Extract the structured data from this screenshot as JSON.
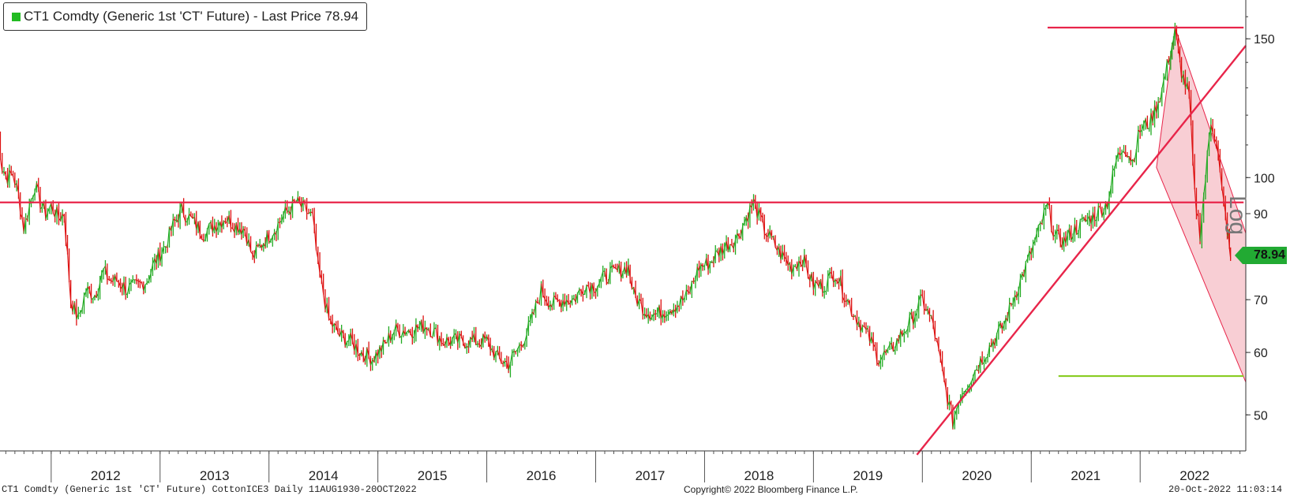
{
  "legend": {
    "label": "CT1 Comdty (Generic 1st 'CT' Future) - Last Price 78.94",
    "color": "#22bb22"
  },
  "axis": {
    "log_label": "Log",
    "last_price_tag": "78.94"
  },
  "footer": {
    "left": "CT1 Comdty (Generic 1st 'CT' Future) CottonICE3  Daily 11AUG1930-20OCT2022",
    "center": "Copyright© 2022 Bloomberg Finance L.P.",
    "right": "20-Oct-2022 11:03:14"
  },
  "colors": {
    "up": "#22aa22",
    "down": "#dd1111",
    "line_red": "#e8254a",
    "line_green": "#88cc22",
    "channel_fill": "#f7c6cc"
  },
  "chart_data": {
    "type": "line",
    "title": "CT1 Comdty (Generic 1st 'CT' Future) - Last Price 78.94",
    "scale": "log",
    "ylim": [
      45,
      168
    ],
    "y_ticks": [
      50,
      60,
      70,
      90,
      100,
      150
    ],
    "x_ticks": [
      "2012",
      "2013",
      "2014",
      "2015",
      "2016",
      "2017",
      "2018",
      "2019",
      "2020",
      "2021",
      "2022"
    ],
    "last_price": 78.94,
    "series": [
      {
        "values": [
          [
            2011.5,
            118
          ],
          [
            2011.55,
            103
          ],
          [
            2011.6,
            100
          ],
          [
            2011.65,
            101
          ],
          [
            2011.7,
            95
          ],
          [
            2011.75,
            86
          ],
          [
            2011.8,
            92
          ],
          [
            2011.85,
            98
          ],
          [
            2011.9,
            93
          ],
          [
            2011.95,
            90
          ],
          [
            2012.0,
            92
          ],
          [
            2012.07,
            89
          ],
          [
            2012.12,
            90
          ],
          [
            2012.18,
            70
          ],
          [
            2012.25,
            66
          ],
          [
            2012.32,
            72
          ],
          [
            2012.4,
            71
          ],
          [
            2012.48,
            76
          ],
          [
            2012.55,
            74
          ],
          [
            2012.62,
            74
          ],
          [
            2012.7,
            72
          ],
          [
            2012.8,
            73
          ],
          [
            2012.88,
            74
          ],
          [
            2012.95,
            78
          ],
          [
            2013.05,
            82
          ],
          [
            2013.12,
            87
          ],
          [
            2013.2,
            91
          ],
          [
            2013.3,
            88
          ],
          [
            2013.4,
            85
          ],
          [
            2013.5,
            87
          ],
          [
            2013.6,
            89
          ],
          [
            2013.7,
            87
          ],
          [
            2013.78,
            86
          ],
          [
            2013.85,
            79
          ],
          [
            2013.95,
            83
          ],
          [
            2014.05,
            86
          ],
          [
            2014.15,
            90
          ],
          [
            2014.25,
            93
          ],
          [
            2014.33,
            91
          ],
          [
            2014.4,
            89
          ],
          [
            2014.45,
            77
          ],
          [
            2014.55,
            66
          ],
          [
            2014.65,
            63
          ],
          [
            2014.75,
            62
          ],
          [
            2014.85,
            60
          ],
          [
            2014.95,
            59
          ],
          [
            2015.05,
            61
          ],
          [
            2015.15,
            64
          ],
          [
            2015.3,
            64
          ],
          [
            2015.45,
            65
          ],
          [
            2015.6,
            62
          ],
          [
            2015.75,
            62
          ],
          [
            2015.9,
            62
          ],
          [
            2016.0,
            62
          ],
          [
            2016.1,
            59
          ],
          [
            2016.2,
            58
          ],
          [
            2016.3,
            61
          ],
          [
            2016.4,
            65
          ],
          [
            2016.5,
            72
          ],
          [
            2016.6,
            69
          ],
          [
            2016.7,
            70
          ],
          [
            2016.8,
            70
          ],
          [
            2016.9,
            73
          ],
          [
            2017.0,
            73
          ],
          [
            2017.1,
            75
          ],
          [
            2017.2,
            76
          ],
          [
            2017.3,
            77
          ],
          [
            2017.35,
            71
          ],
          [
            2017.45,
            68
          ],
          [
            2017.55,
            67
          ],
          [
            2017.65,
            68
          ],
          [
            2017.75,
            69
          ],
          [
            2017.85,
            71
          ],
          [
            2017.95,
            77
          ],
          [
            2018.05,
            78
          ],
          [
            2018.15,
            81
          ],
          [
            2018.3,
            84
          ],
          [
            2018.45,
            93
          ],
          [
            2018.55,
            86
          ],
          [
            2018.7,
            80
          ],
          [
            2018.8,
            77
          ],
          [
            2018.9,
            79
          ],
          [
            2019.0,
            73
          ],
          [
            2019.1,
            73
          ],
          [
            2019.2,
            76
          ],
          [
            2019.35,
            68
          ],
          [
            2019.5,
            63
          ],
          [
            2019.6,
            59
          ],
          [
            2019.7,
            60
          ],
          [
            2019.8,
            63
          ],
          [
            2019.9,
            66
          ],
          [
            2020.0,
            70
          ],
          [
            2020.1,
            65
          ],
          [
            2020.2,
            55
          ],
          [
            2020.28,
            49
          ],
          [
            2020.35,
            53
          ],
          [
            2020.45,
            56
          ],
          [
            2020.55,
            59
          ],
          [
            2020.65,
            62
          ],
          [
            2020.75,
            65
          ],
          [
            2020.85,
            71
          ],
          [
            2020.95,
            77
          ],
          [
            2021.05,
            84
          ],
          [
            2021.15,
            92
          ],
          [
            2021.22,
            84
          ],
          [
            2021.3,
            83
          ],
          [
            2021.4,
            86
          ],
          [
            2021.5,
            88
          ],
          [
            2021.6,
            90
          ],
          [
            2021.7,
            93
          ],
          [
            2021.78,
            105
          ],
          [
            2021.85,
            110
          ],
          [
            2021.93,
            105
          ],
          [
            2022.0,
            115
          ],
          [
            2022.1,
            118
          ],
          [
            2022.2,
            129
          ],
          [
            2022.28,
            145
          ],
          [
            2022.32,
            153
          ],
          [
            2022.38,
            136
          ],
          [
            2022.45,
            127
          ],
          [
            2022.5,
            95
          ],
          [
            2022.55,
            85
          ],
          [
            2022.6,
            100
          ],
          [
            2022.65,
            118
          ],
          [
            2022.7,
            112
          ],
          [
            2022.75,
            96
          ],
          [
            2022.8,
            86
          ],
          [
            2022.83,
            78.94
          ]
        ]
      }
    ],
    "overlays": [
      {
        "type": "horizontal",
        "y": 155,
        "from": 2021.15,
        "to": 2022.95,
        "color": "#e8254a"
      },
      {
        "type": "horizontal",
        "y": 93,
        "from": 2011.5,
        "to": 2022.95,
        "color": "#e8254a"
      },
      {
        "type": "horizontal",
        "y": 56,
        "from": 2021.25,
        "to": 2022.95,
        "color": "#88cc22"
      },
      {
        "type": "trendline",
        "from": [
          2019.95,
          44.5
        ],
        "to": [
          2022.97,
          147
        ],
        "color": "#e8254a"
      },
      {
        "type": "channel",
        "upper": [
          [
            2022.32,
            155
          ],
          [
            2022.97,
            85
          ]
        ],
        "lower": [
          [
            2022.15,
            103
          ],
          [
            2022.97,
            55
          ]
        ],
        "color": "#f7c6cc"
      }
    ]
  }
}
